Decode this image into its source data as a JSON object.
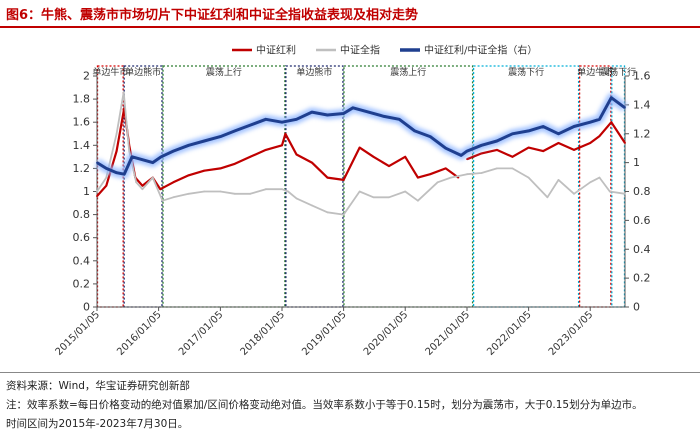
{
  "title": "图6：牛熊、震荡市市场切片下中证红利和中证全指收益表现及相对走势",
  "footer": {
    "source": "资料来源：Wind，华宝证券研究创新部",
    "note": "注：效率系数=每日价格变动的绝对值累加/区间价格变动绝对值。当效率系数小于等于0.15时，划分为震荡市，大于0.15划分为单边市。",
    "period": "时间区间为2015年-2023年7月30日。"
  },
  "colors": {
    "red": "#c00000",
    "gray": "#bfbfbf",
    "blue": "#1f3f8f",
    "glow": "#8fb6ff",
    "box_red": "#d40000",
    "box_navy": "#1f2a6e",
    "box_green": "#2e7d32",
    "box_cyan": "#00b0d8"
  },
  "chart_data": {
    "type": "line",
    "legend": [
      "中证红利",
      "中证全指",
      "中证红利/中证全指（右）"
    ],
    "legend_position": "top",
    "y_left": {
      "min": 0,
      "max": 2,
      "ticks": [
        "0",
        "0.2",
        "0.4",
        "0.6",
        "0.8",
        "1",
        "1.2",
        "1.4",
        "1.6",
        "1.8",
        "2"
      ]
    },
    "y_right": {
      "min": 0,
      "max": 1.6,
      "ticks": [
        "0",
        "0.2",
        "0.4",
        "0.6",
        "0.8",
        "1",
        "1.2",
        "1.4",
        "1.6"
      ]
    },
    "x_ticks": [
      "2015/01/05",
      "2016/01/05",
      "2017/01/05",
      "2018/01/05",
      "2019/01/05",
      "2020/01/05",
      "2021/01/05",
      "2022/01/05",
      "2023/01/05"
    ],
    "x_range": [
      "2015/01/05",
      "2023/07/30"
    ],
    "series": [
      {
        "name": "中证红利",
        "axis": "left",
        "x": [
          "2015/01/05",
          "2015/03/01",
          "2015/05/01",
          "2015/06/15",
          "2015/07/15",
          "2015/08/20",
          "2015/10/01",
          "2015/12/01",
          "2016/01/15",
          "2016/04/01",
          "2016/07/01",
          "2016/10/01",
          "2017/01/05",
          "2017/04/01",
          "2017/07/01",
          "2017/10/01",
          "2018/01/05",
          "2018/01/25",
          "2018/04/01",
          "2018/07/01",
          "2018/10/01",
          "2019/01/05",
          "2019/04/10",
          "2019/07/01",
          "2019/10/01",
          "2020/01/05",
          "2020/03/20",
          "2020/06/01",
          "2020/09/01",
          "2020/11/15"
        ],
        "y": [
          0.96,
          1.05,
          1.35,
          1.72,
          1.4,
          1.12,
          1.05,
          1.12,
          1.02,
          1.08,
          1.14,
          1.18,
          1.2,
          1.24,
          1.3,
          1.36,
          1.4,
          1.5,
          1.32,
          1.25,
          1.12,
          1.1,
          1.38,
          1.3,
          1.22,
          1.3,
          1.12,
          1.15,
          1.2,
          1.12
        ]
      },
      {
        "name": "中证红利",
        "axis": "left",
        "x": [
          "2021/01/05",
          "2021/04/01",
          "2021/07/01",
          "2021/10/01",
          "2022/01/05",
          "2022/04/01",
          "2022/07/01",
          "2022/10/01",
          "2023/01/05",
          "2023/03/01",
          "2023/05/10",
          "2023/07/30"
        ],
        "y": [
          1.28,
          1.33,
          1.36,
          1.3,
          1.38,
          1.35,
          1.42,
          1.36,
          1.42,
          1.48,
          1.6,
          1.42
        ]
      },
      {
        "name": "中证全指",
        "axis": "left",
        "x": [
          "2015/01/05",
          "2015/03/01",
          "2015/05/01",
          "2015/06/12",
          "2015/07/15",
          "2015/08/25",
          "2015/10/01",
          "2015/12/01",
          "2016/01/28",
          "2016/04/01",
          "2016/07/01",
          "2016/10/01",
          "2017/01/05",
          "2017/04/01",
          "2017/07/01",
          "2017/10/01",
          "2018/01/05",
          "2018/02/10",
          "2018/04/01",
          "2018/07/01",
          "2018/10/01",
          "2019/01/05",
          "2019/04/10",
          "2019/07/01",
          "2019/10/01",
          "2020/01/05",
          "2020/03/20",
          "2020/07/15",
          "2020/10/01",
          "2021/01/05",
          "2021/04/01",
          "2021/07/01",
          "2021/10/01",
          "2022/01/05",
          "2022/04/26",
          "2022/07/01",
          "2022/10/01",
          "2023/01/05",
          "2023/03/01",
          "2023/05/01",
          "2023/07/30"
        ],
        "y": [
          1.0,
          1.12,
          1.5,
          1.86,
          1.35,
          1.08,
          1.02,
          1.12,
          0.92,
          0.95,
          0.98,
          1.0,
          1.0,
          0.98,
          0.98,
          1.02,
          1.02,
          1.0,
          0.94,
          0.88,
          0.82,
          0.8,
          1.0,
          0.95,
          0.95,
          1.0,
          0.92,
          1.08,
          1.12,
          1.15,
          1.16,
          1.2,
          1.2,
          1.12,
          0.95,
          1.1,
          0.98,
          1.08,
          1.12,
          1.0,
          0.98
        ]
      },
      {
        "name": "中证红利/中证全指（右）",
        "axis": "right",
        "x": [
          "2015/01/05",
          "2015/03/01",
          "2015/05/01",
          "2015/06/15",
          "2015/08/01",
          "2015/10/01",
          "2015/12/01",
          "2016/01/20",
          "2016/04/01",
          "2016/07/01",
          "2016/10/01",
          "2017/01/05",
          "2017/04/01",
          "2017/07/01",
          "2017/10/01",
          "2018/01/05",
          "2018/04/01",
          "2018/07/01",
          "2018/10/01",
          "2019/01/05",
          "2019/03/01",
          "2019/06/01",
          "2019/09/01",
          "2019/12/01",
          "2020/03/01",
          "2020/06/01",
          "2020/09/01",
          "2020/12/01",
          "2021/01/05",
          "2021/04/01",
          "2021/07/01",
          "2021/10/01",
          "2022/01/05",
          "2022/04/01",
          "2022/07/01",
          "2022/10/01",
          "2023/01/05",
          "2023/03/01",
          "2023/05/10",
          "2023/07/30"
        ],
        "y": [
          1.0,
          0.96,
          0.93,
          0.92,
          1.04,
          1.02,
          1.0,
          1.04,
          1.08,
          1.12,
          1.15,
          1.18,
          1.22,
          1.26,
          1.3,
          1.28,
          1.3,
          1.35,
          1.33,
          1.34,
          1.38,
          1.35,
          1.32,
          1.3,
          1.22,
          1.18,
          1.1,
          1.05,
          1.08,
          1.12,
          1.15,
          1.2,
          1.22,
          1.25,
          1.2,
          1.25,
          1.28,
          1.3,
          1.45,
          1.38
        ]
      }
    ],
    "regimes": [
      {
        "label": "单边牛市",
        "start": "2015/01/05",
        "end": "2015/06/12",
        "color": "box_red"
      },
      {
        "label": "单边熊市",
        "start": "2015/06/12",
        "end": "2016/01/28",
        "color": "box_navy"
      },
      {
        "label": "震荡上行",
        "start": "2016/01/28",
        "end": "2018/01/25",
        "color": "box_green"
      },
      {
        "label": "单边熊市",
        "start": "2018/01/25",
        "end": "2019/01/04",
        "color": "box_navy"
      },
      {
        "label": "震荡上行",
        "start": "2019/01/04",
        "end": "2021/02/10",
        "color": "box_green"
      },
      {
        "label": "震荡下行",
        "start": "2021/02/10",
        "end": "2022/10/31",
        "color": "box_cyan"
      },
      {
        "label": "单边牛市",
        "start": "2022/10/31",
        "end": "2023/05/10",
        "color": "box_red"
      },
      {
        "label": "震荡下行",
        "start": "2023/05/10",
        "end": "2023/07/30",
        "color": "box_cyan"
      }
    ]
  }
}
